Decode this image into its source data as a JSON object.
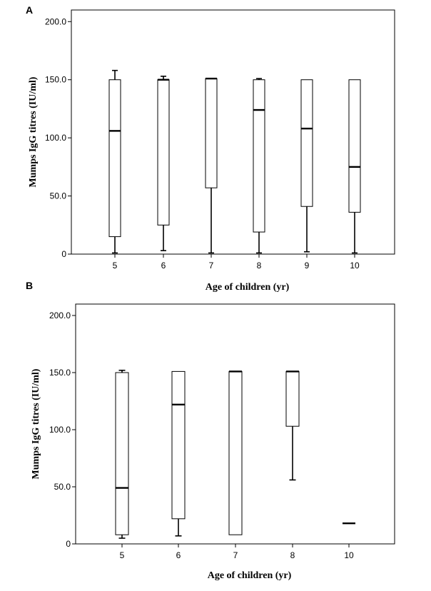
{
  "chart_data": [
    {
      "panel": "A",
      "type": "box",
      "xlabel": "Age of children (yr)",
      "ylabel": "Mumps IgG titres (IU/ml)",
      "ylim": [
        0,
        210
      ],
      "yticks": [
        "0",
        "50.0",
        "100.0",
        "150.0",
        "200.0"
      ],
      "ytick_values": [
        0,
        50,
        100,
        150,
        200
      ],
      "grid": false,
      "categories": [
        "5",
        "6",
        "7",
        "8",
        "9",
        "10"
      ],
      "boxes": [
        {
          "category": "5",
          "whisker_low": 1,
          "q1": 15,
          "median": 106,
          "q3": 150,
          "whisker_high": 158
        },
        {
          "category": "6",
          "whisker_low": 3,
          "q1": 25,
          "median": 150,
          "q3": 150,
          "whisker_high": 153
        },
        {
          "category": "7",
          "whisker_low": 1,
          "q1": 57,
          "median": 151,
          "q3": 151,
          "whisker_high": 151
        },
        {
          "category": "8",
          "whisker_low": 1,
          "q1": 19,
          "median": 124,
          "q3": 150,
          "whisker_high": 151
        },
        {
          "category": "9",
          "whisker_low": 2,
          "q1": 41,
          "median": 108,
          "q3": 150,
          "whisker_high": 150
        },
        {
          "category": "10",
          "whisker_low": 1,
          "q1": 36,
          "median": 75,
          "q3": 150,
          "whisker_high": 150
        }
      ]
    },
    {
      "panel": "B",
      "type": "box",
      "xlabel": "Age of children (yr)",
      "ylabel": "Mumps IgG titres (IU/ml)",
      "ylim": [
        0,
        210
      ],
      "yticks": [
        "0",
        "50.0",
        "100.0",
        "150.0",
        "200.0"
      ],
      "ytick_values": [
        0,
        50,
        100,
        150,
        200
      ],
      "grid": false,
      "categories": [
        "5",
        "6",
        "7",
        "8",
        "10"
      ],
      "boxes": [
        {
          "category": "5",
          "whisker_low": 5,
          "q1": 8,
          "median": 49,
          "q3": 150,
          "whisker_high": 152
        },
        {
          "category": "6",
          "whisker_low": 7,
          "q1": 22,
          "median": 122,
          "q3": 151,
          "whisker_high": 151
        },
        {
          "category": "7",
          "whisker_low": 8,
          "q1": 8,
          "median": 151,
          "q3": 151,
          "whisker_high": 151
        },
        {
          "category": "8",
          "whisker_low": 56,
          "q1": 103,
          "median": 151,
          "q3": 151,
          "whisker_high": 151
        },
        {
          "category": "10",
          "whisker_low": 18,
          "q1": 18,
          "median": 18,
          "q3": 18,
          "whisker_high": 18
        }
      ]
    }
  ],
  "panels": [
    {
      "letter": "A"
    },
    {
      "letter": "B"
    }
  ]
}
